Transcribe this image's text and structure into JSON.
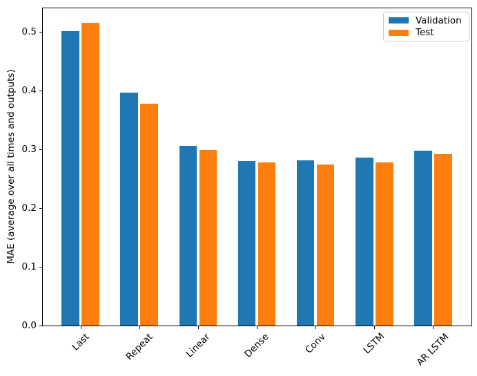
{
  "chart_data": {
    "type": "bar",
    "title": "",
    "categories": [
      "Last",
      "Repeat",
      "Linear",
      "Dense",
      "Conv",
      "LSTM",
      "AR LSTM"
    ],
    "series": [
      {
        "name": "Validation",
        "color": "#1f77b4",
        "values": [
          0.501,
          0.396,
          0.306,
          0.28,
          0.281,
          0.286,
          0.298
        ]
      },
      {
        "name": "Test",
        "color": "#ff7f0e",
        "values": [
          0.515,
          0.377,
          0.299,
          0.277,
          0.274,
          0.277,
          0.292
        ]
      }
    ],
    "xlabel": "",
    "ylabel": "MAE (average over all times and outputs)",
    "ylim": [
      0,
      0.541
    ],
    "xlim": [
      -0.652,
      6.652
    ],
    "yticks": [
      0.0,
      0.1,
      0.2,
      0.3,
      0.4,
      0.5
    ],
    "ytick_labels": [
      "0.0",
      "0.1",
      "0.2",
      "0.3",
      "0.4",
      "0.5"
    ],
    "xtick_rotation": 45,
    "bar_width": 0.3,
    "bar_offset": 0.17,
    "grid": false,
    "legend": {
      "position": "upper right",
      "entries": [
        "Validation",
        "Test"
      ]
    },
    "colors": {
      "validation": "#1f77b4",
      "test": "#ff7f0e",
      "spine": "#000000",
      "legend_border": "#cccccc",
      "background": "#ffffff"
    }
  }
}
